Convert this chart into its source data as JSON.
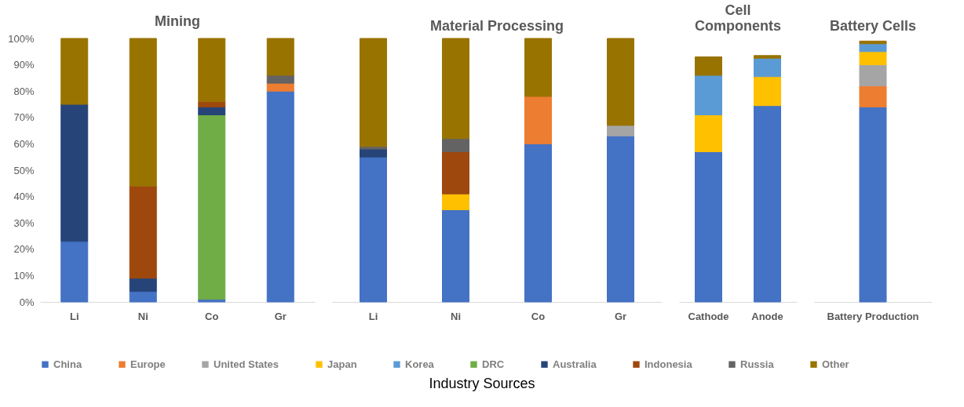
{
  "chart_data": [
    {
      "type": "bar",
      "title": "Mining",
      "stacked": true,
      "legend": "bottom",
      "categories": [
        "Li",
        "Ni",
        "Co",
        "Gr"
      ],
      "ylim": [
        0,
        100
      ],
      "yticks": [
        {
          "value": 0,
          "label": "0%"
        },
        {
          "value": 10,
          "label": "10%"
        },
        {
          "value": 20,
          "label": "20%"
        },
        {
          "value": 30,
          "label": "30%"
        },
        {
          "value": 40,
          "label": "40%"
        },
        {
          "value": 50,
          "label": "50%"
        },
        {
          "value": 60,
          "label": "60%"
        },
        {
          "value": 70,
          "label": "70%"
        },
        {
          "value": 80,
          "label": "80%"
        },
        {
          "value": 90,
          "label": "90%"
        },
        {
          "value": 100,
          "label": "100%"
        }
      ],
      "annotations": [
        "Industry Sources"
      ],
      "series": [
        {
          "name": "China",
          "color": "#4472c4",
          "values": [
            23,
            4,
            1,
            80
          ]
        },
        {
          "name": "Europe",
          "color": "#ed7d31",
          "values": [
            null,
            null,
            null,
            3
          ]
        },
        {
          "name": "DRC",
          "color": "#70ad47",
          "values": [
            null,
            null,
            70,
            null
          ]
        },
        {
          "name": "Australia",
          "color": "#264478",
          "values": [
            52,
            5,
            3,
            null
          ]
        },
        {
          "name": "Indonesia",
          "color": "#9e480e",
          "values": [
            null,
            35,
            2,
            null
          ]
        },
        {
          "name": "Russia",
          "color": "#636363",
          "values": [
            null,
            null,
            null,
            3
          ]
        },
        {
          "name": "Other",
          "color": "#997300",
          "values": [
            25,
            56,
            24,
            14
          ]
        }
      ]
    },
    {
      "type": "bar",
      "title": "Material Processing",
      "stacked": true,
      "legend": "bottom",
      "tick_labels": "x",
      "categories": [
        "Li",
        "Ni",
        "Co",
        "Gr"
      ],
      "ylim": [
        0,
        100
      ],
      "series": [
        {
          "name": "China",
          "color": "#4472c4",
          "values": [
            55,
            35,
            60,
            63
          ]
        },
        {
          "name": "Europe",
          "color": "#ed7d31",
          "values": [
            null,
            null,
            18,
            null
          ]
        },
        {
          "name": "United States",
          "color": "#a5a5a5",
          "values": [
            null,
            null,
            null,
            4
          ]
        },
        {
          "name": "Japan",
          "color": "#ffc000",
          "values": [
            null,
            6,
            null,
            null
          ]
        },
        {
          "name": "Australia",
          "color": "#264478",
          "values": [
            3,
            null,
            null,
            null
          ]
        },
        {
          "name": "Indonesia",
          "color": "#9e480e",
          "values": [
            null,
            16,
            null,
            null
          ]
        },
        {
          "name": "Russia",
          "color": "#636363",
          "values": [
            1,
            5,
            null,
            null
          ]
        },
        {
          "name": "Other",
          "color": "#997300",
          "values": [
            41,
            38,
            22,
            33
          ]
        }
      ]
    },
    {
      "type": "bar",
      "title": "Cell Components",
      "stacked": true,
      "legend": "bottom",
      "tick_labels": "x",
      "categories": [
        "Cathode",
        "Anode"
      ],
      "ylim": [
        0,
        100
      ],
      "series": [
        {
          "name": "China",
          "color": "#4472c4",
          "values": [
            57,
            74.5
          ]
        },
        {
          "name": "Japan",
          "color": "#ffc000",
          "values": [
            14,
            11
          ]
        },
        {
          "name": "Korea",
          "color": "#5b9bd5",
          "values": [
            15,
            7
          ]
        },
        {
          "name": "Other",
          "color": "#997300",
          "values": [
            7,
            1
          ]
        }
      ]
    },
    {
      "type": "bar",
      "title": "Battery Cells",
      "stacked": true,
      "legend": "bottom",
      "tick_labels": "x",
      "categories": [
        "Battery Production"
      ],
      "ylim": [
        0,
        100
      ],
      "series": [
        {
          "name": "China",
          "color": "#4472c4",
          "values": [
            74
          ]
        },
        {
          "name": "Europe",
          "color": "#ed7d31",
          "values": [
            8
          ]
        },
        {
          "name": "United States",
          "color": "#a5a5a5",
          "values": [
            8
          ]
        },
        {
          "name": "Japan",
          "color": "#ffc000",
          "values": [
            5
          ]
        },
        {
          "name": "Korea",
          "color": "#5b9bd5",
          "values": [
            3
          ]
        },
        {
          "name": "Other",
          "color": "#997300",
          "values": [
            1
          ]
        }
      ]
    }
  ]
}
